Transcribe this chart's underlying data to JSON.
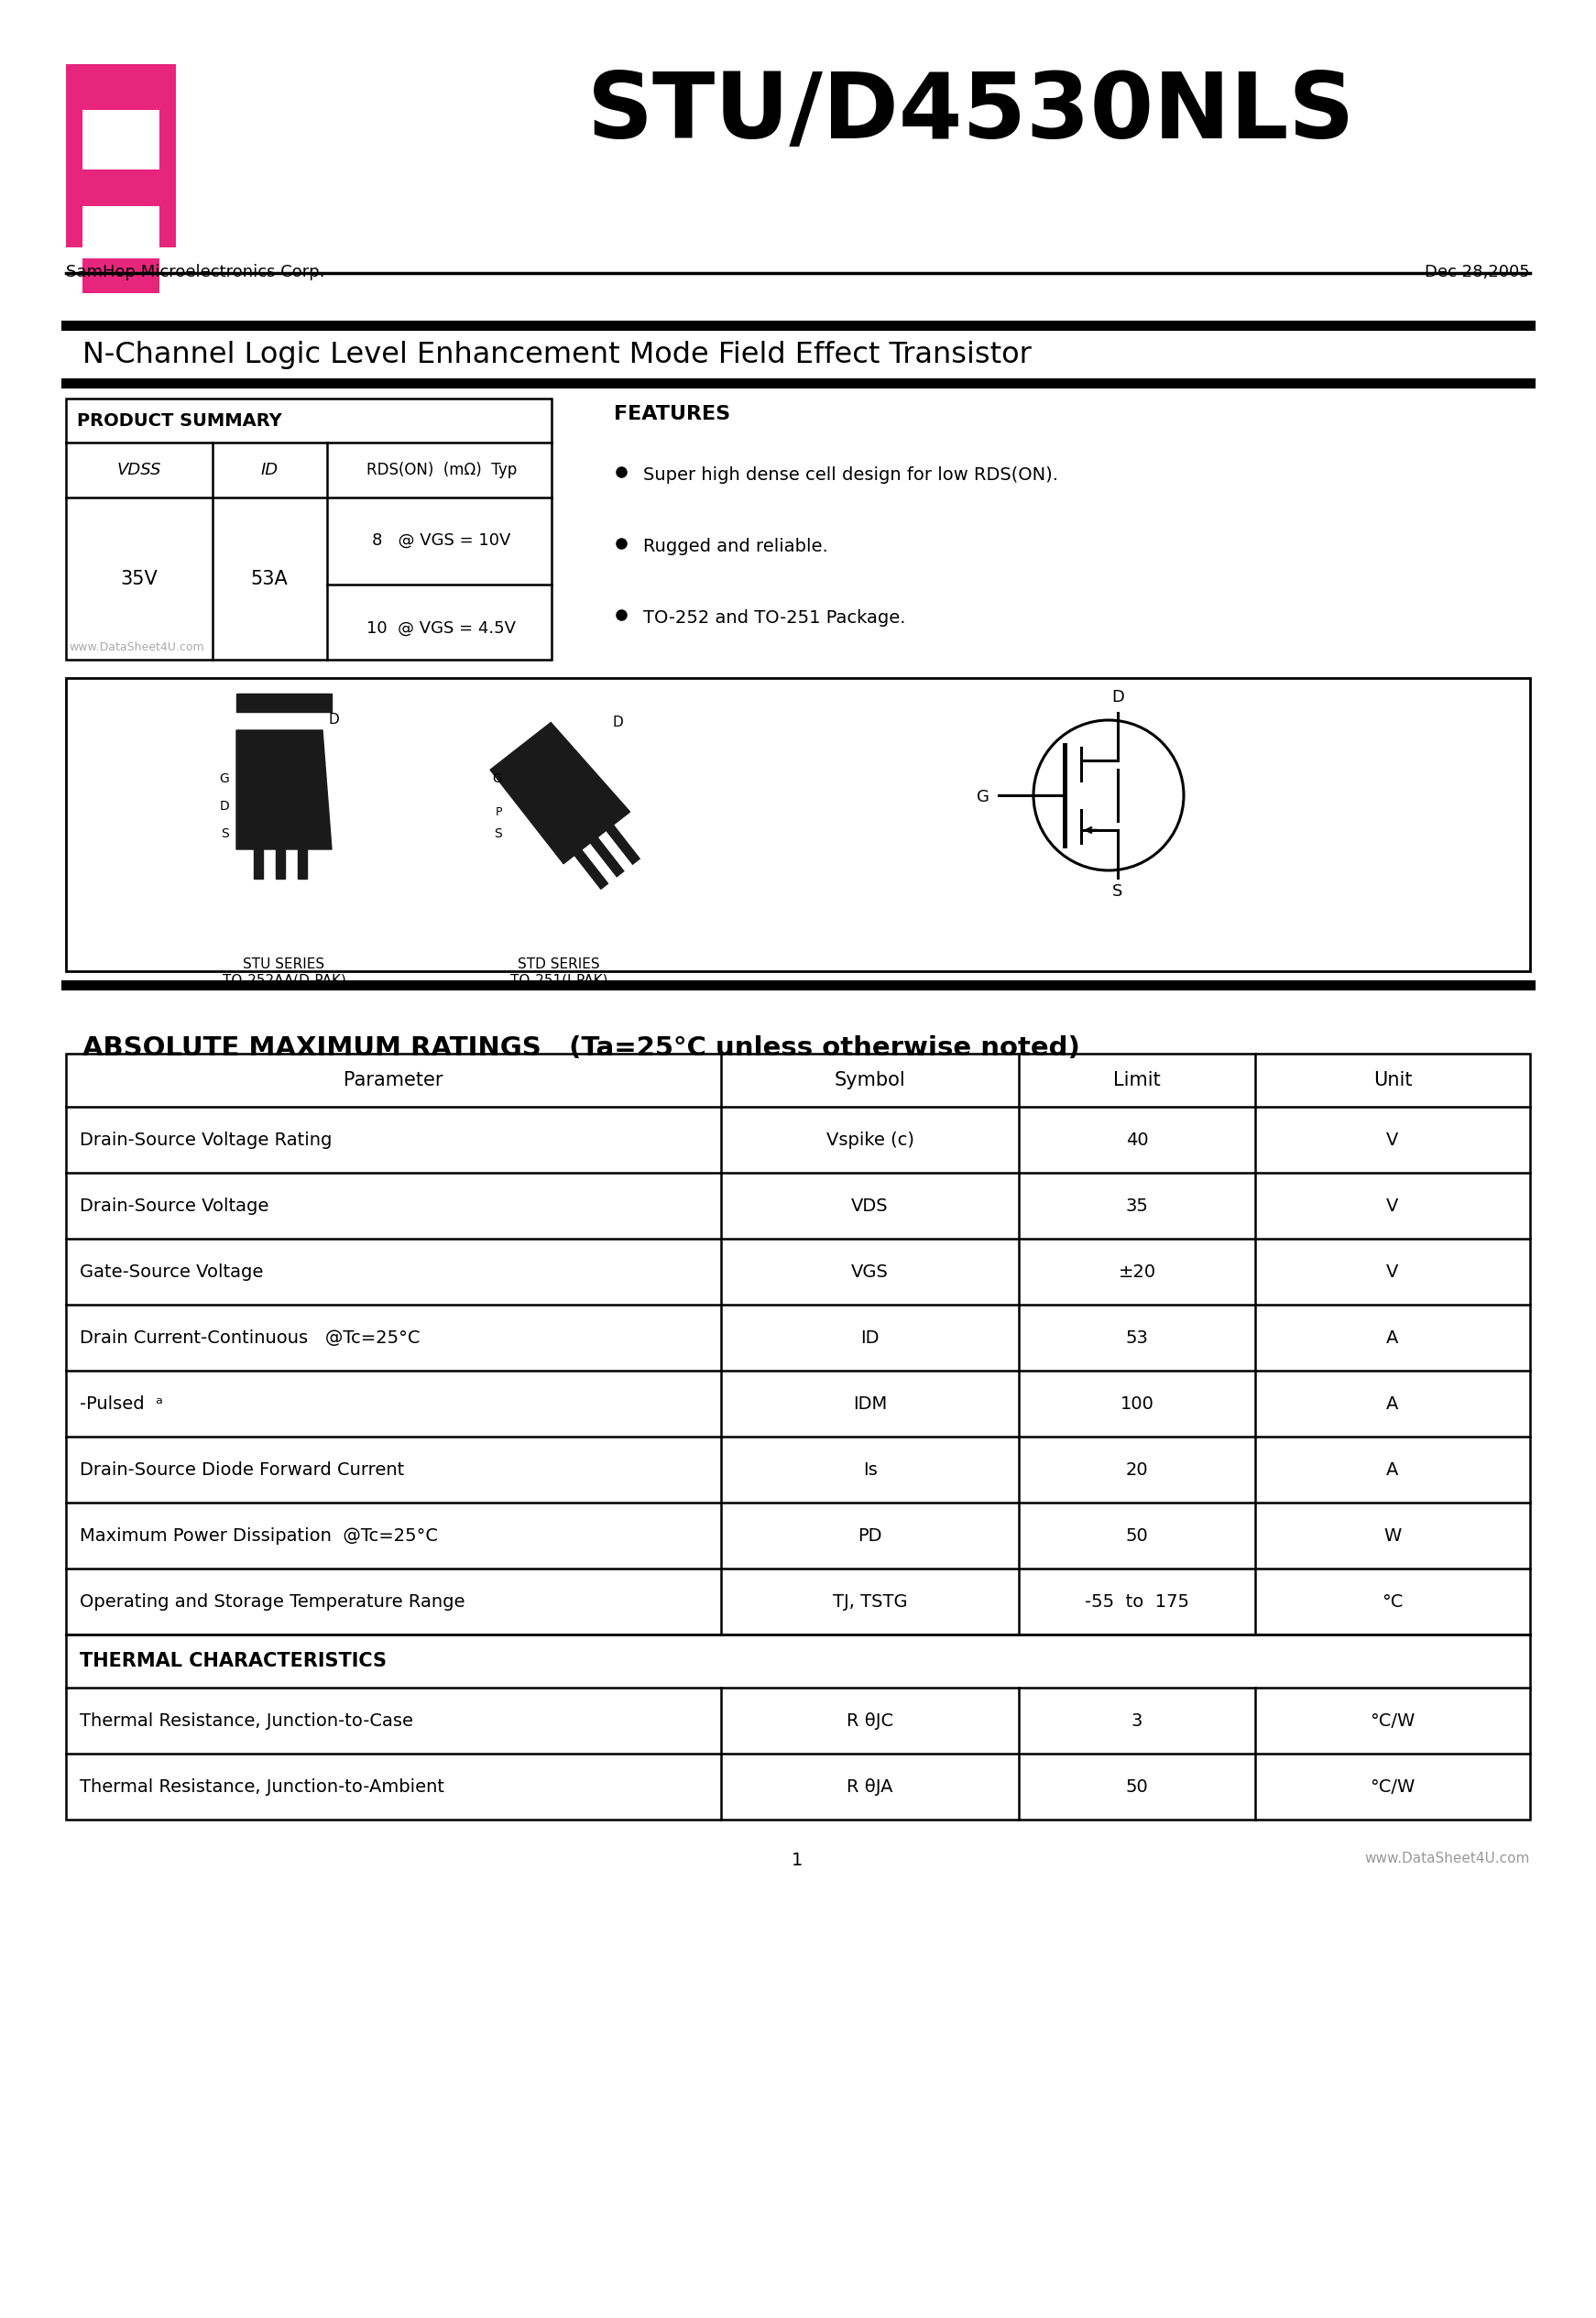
{
  "title": "STU/D4530NLS",
  "company": "SamHop Microelectronics Corp.",
  "date": "Dec 28,2005",
  "subtitle": "N-Channel Logic Level Enhancement Mode Field Effect Transistor",
  "logo_color": "#E8257D",
  "product_summary_header": "PRODUCT SUMMARY",
  "ps_vdss": "35V",
  "ps_id": "53A",
  "ps_rds1": "8   @ VGS = 10V",
  "ps_rds2": "10  @ VGS = 4.5V",
  "features_header": "FEATURES",
  "features": [
    "Super high dense cell design for low RDS(ON).",
    "Rugged and reliable.",
    "TO-252 and TO-251 Package."
  ],
  "pkg1_label": "STU SERIES\nTO-252AA(D-PAK)",
  "pkg2_label": "STD SERIES\nTO-251(I-PAK)",
  "abs_max_title": "ABSOLUTE MAXIMUM RATINGS",
  "abs_max_subtitle": "(Ta=25°C unless otherwise noted)",
  "abs_table_headers": [
    "Parameter",
    "Symbol",
    "Limit",
    "Unit"
  ],
  "thermal_header": "THERMAL CHARACTERISTICS",
  "thermal_rows": [
    [
      "Thermal Resistance, Junction-to-Case",
      "R θJC",
      "3",
      "°C/W"
    ],
    [
      "Thermal Resistance, Junction-to-Ambient",
      "R θJA",
      "50",
      "°C/W"
    ]
  ],
  "watermark": "www.DataSheet4U.com",
  "page_num": "1",
  "footer_url": "www.DataSheet4U.com"
}
